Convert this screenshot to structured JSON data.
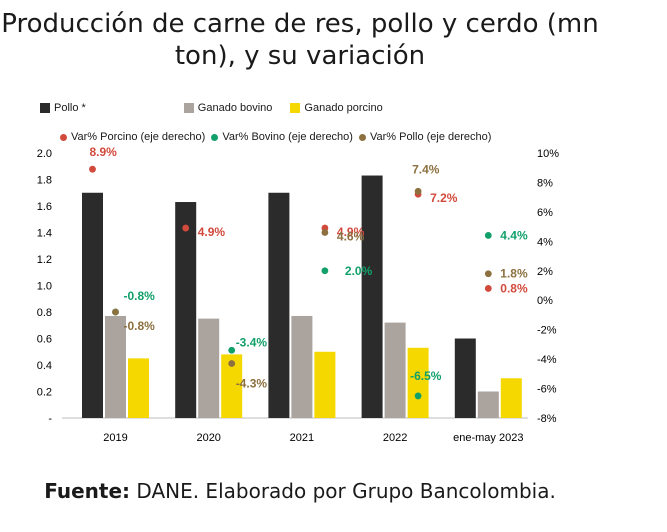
{
  "title": "Producción de carne de res, pollo y cerdo (mn ton), y su variación",
  "footer": {
    "label": "Fuente:",
    "text": "DANE. Elaborado por Grupo Bancolombia."
  },
  "colors": {
    "pollo": "#2b2b2b",
    "bovino": "#aaa39e",
    "porcino": "#f5d800",
    "var_porcino": "#d24a3c",
    "var_bovino": "#12a06a",
    "var_pollo": "#8c7040"
  },
  "chart_data": {
    "type": "bar",
    "categories": [
      "2019",
      "2020",
      "2021",
      "2022",
      "ene-may 2023"
    ],
    "series": [
      {
        "name": "Pollo *",
        "values": [
          1.7,
          1.63,
          1.7,
          1.83,
          0.6
        ]
      },
      {
        "name": "Ganado bovino",
        "values": [
          0.77,
          0.75,
          0.77,
          0.72,
          0.2
        ]
      },
      {
        "name": "Ganado porcino",
        "values": [
          0.45,
          0.48,
          0.5,
          0.53,
          0.3
        ]
      }
    ],
    "secondary_series": [
      {
        "name": "Var% Porcino (eje derecho)",
        "values": [
          8.9,
          4.9,
          4.9,
          7.2,
          0.8
        ],
        "labels": [
          "8.9%",
          "4.9%",
          "4.9%",
          "7.2%",
          "0.8%"
        ]
      },
      {
        "name": "Var% Bovino (eje derecho)",
        "values": [
          -0.8,
          -3.4,
          2.0,
          -6.5,
          4.4
        ],
        "labels": [
          "-0.8%",
          "-3.4%",
          "2.0%",
          "-6.5%",
          "4.4%"
        ]
      },
      {
        "name": "Var% Pollo (eje derecho)",
        "values": [
          -0.8,
          -4.3,
          4.6,
          7.4,
          1.8
        ],
        "labels": [
          "-0.8%",
          "-4.3%",
          "4.6%",
          "7.4%",
          "1.8%"
        ]
      }
    ],
    "ylim": [
      0,
      2.0
    ],
    "y_ticks": [
      "2.0",
      "1.8",
      "1.6",
      "1.4",
      "1.2",
      "1.0",
      "0.8",
      "0.6",
      "0.4",
      "0.2",
      "-"
    ],
    "y2lim": [
      -8,
      10
    ],
    "y2_ticks": [
      "10%",
      "8%",
      "6%",
      "4%",
      "2%",
      "0%",
      "-2%",
      "-4%",
      "-6%",
      "-8%"
    ],
    "grid": false,
    "legend_position": "top"
  }
}
